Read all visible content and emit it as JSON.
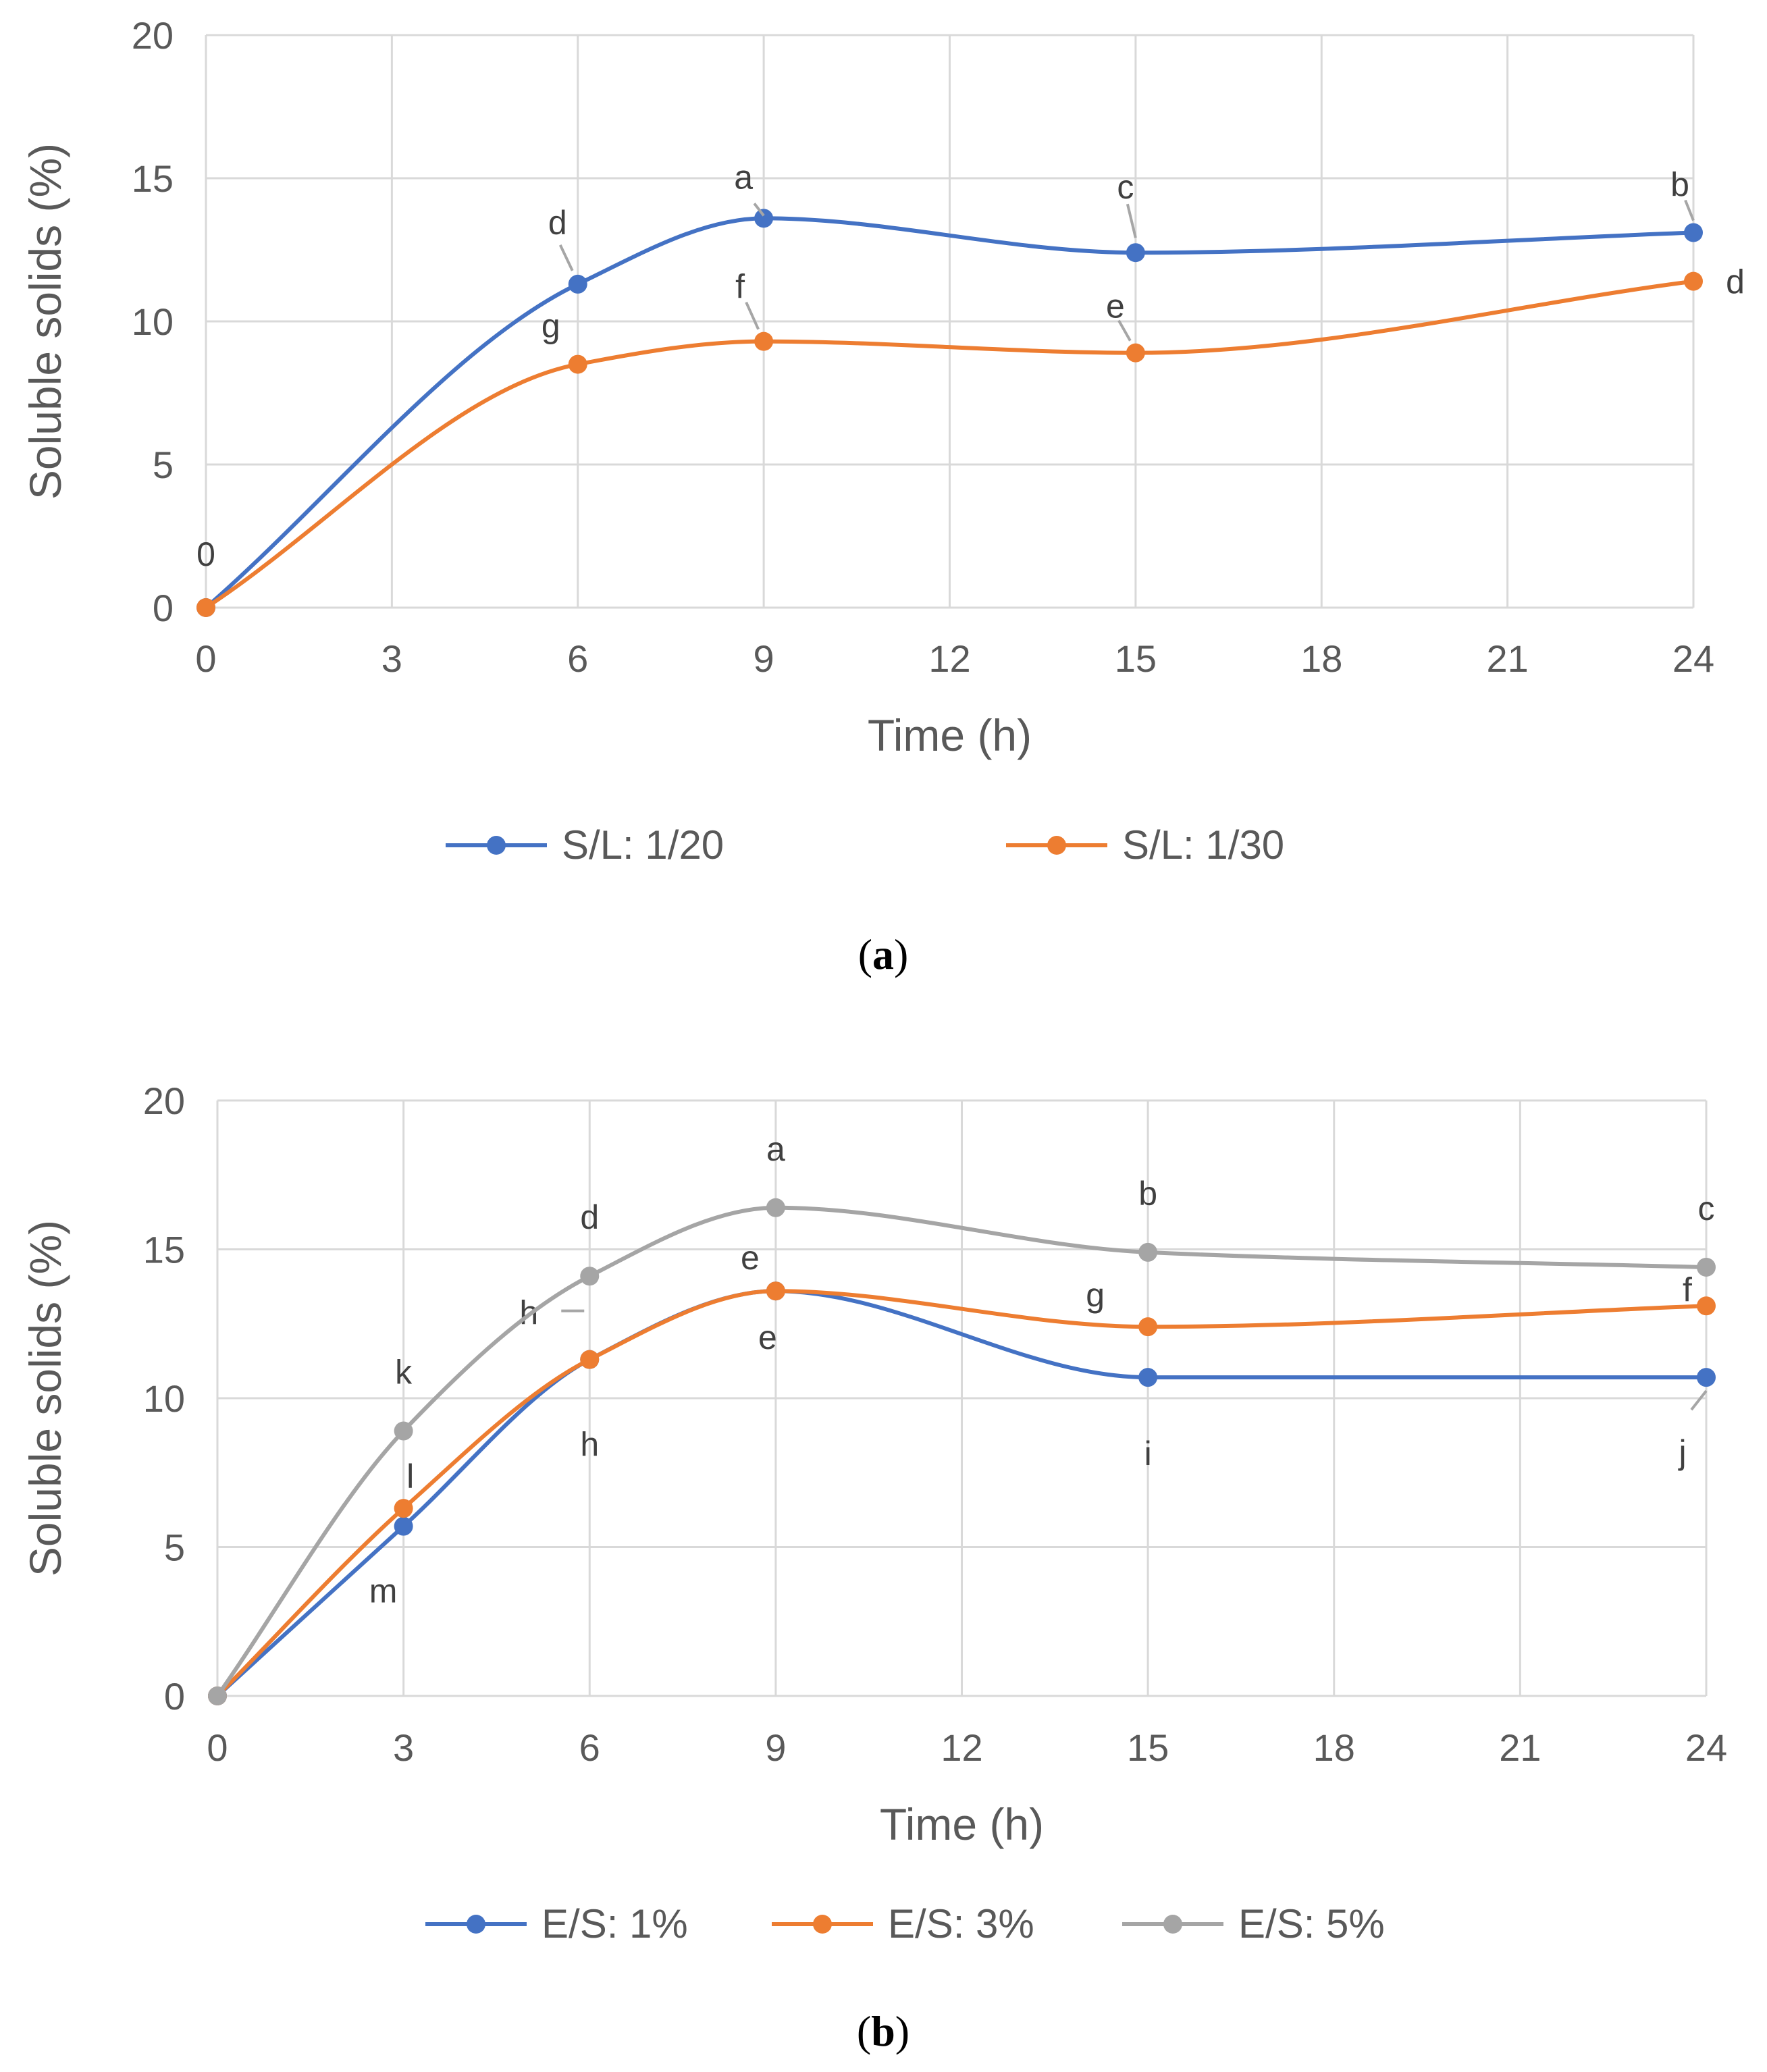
{
  "chart_data": [
    {
      "type": "line",
      "panel": "a",
      "caption_open": "(",
      "caption_letter": "a",
      "caption_close": ")",
      "title": "",
      "xlabel": "Time (h)",
      "ylabel": "Soluble solids (%)",
      "xlim": [
        0,
        24
      ],
      "ylim": [
        0,
        20
      ],
      "xticks": [
        0,
        3,
        6,
        9,
        12,
        15,
        18,
        21,
        24
      ],
      "yticks": [
        0,
        5,
        10,
        15,
        20
      ],
      "grid": true,
      "legend_position": "bottom",
      "series": [
        {
          "name": "S/L: 1/20",
          "color": "#4472C4",
          "x": [
            0,
            6,
            9,
            15,
            24
          ],
          "values": [
            0,
            11.3,
            13.6,
            12.4,
            13.1
          ],
          "labels": [
            "0",
            "d",
            "a",
            "c",
            "b"
          ]
        },
        {
          "name": "S/L: 1/30",
          "color": "#ED7D31",
          "x": [
            0,
            6,
            9,
            15,
            24
          ],
          "values": [
            0,
            8.5,
            9.3,
            8.9,
            11.4
          ],
          "labels": [
            "",
            "g",
            "f",
            "e",
            "d"
          ]
        }
      ]
    },
    {
      "type": "line",
      "panel": "b",
      "caption_open": "(",
      "caption_letter": "b",
      "caption_close": ")",
      "title": "",
      "xlabel": "Time (h)",
      "ylabel": "Soluble solids (%)",
      "xlim": [
        0,
        24
      ],
      "ylim": [
        0,
        20
      ],
      "xticks": [
        0,
        3,
        6,
        9,
        12,
        15,
        18,
        21,
        24
      ],
      "yticks": [
        0,
        5,
        10,
        15,
        20
      ],
      "grid": true,
      "legend_position": "bottom",
      "series": [
        {
          "name": "E/S: 1%",
          "color": "#4472C4",
          "x": [
            0,
            3,
            6,
            9,
            15,
            24
          ],
          "values": [
            0,
            5.7,
            11.3,
            13.6,
            10.7,
            10.7
          ],
          "labels": [
            "",
            "m",
            "h",
            "e",
            "i",
            "j"
          ]
        },
        {
          "name": "E/S: 3%",
          "color": "#ED7D31",
          "x": [
            0,
            3,
            6,
            9,
            15,
            24
          ],
          "values": [
            0,
            6.3,
            11.3,
            13.6,
            12.4,
            13.1
          ],
          "labels": [
            "",
            "l",
            "h",
            "e",
            "g",
            "f"
          ]
        },
        {
          "name": "E/S: 5%",
          "color": "#A5A5A5",
          "x": [
            0,
            3,
            6,
            9,
            15,
            24
          ],
          "values": [
            0,
            8.9,
            14.1,
            16.4,
            14.9,
            14.4
          ],
          "labels": [
            "",
            "k",
            "d",
            "a",
            "b",
            "c"
          ]
        }
      ]
    }
  ]
}
